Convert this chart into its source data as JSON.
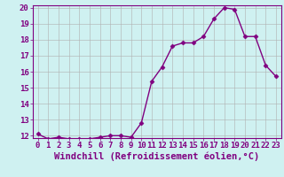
{
  "x": [
    0,
    1,
    2,
    3,
    4,
    5,
    6,
    7,
    8,
    9,
    10,
    11,
    12,
    13,
    14,
    15,
    16,
    17,
    18,
    19,
    20,
    21,
    22,
    23
  ],
  "y": [
    12.1,
    11.8,
    11.9,
    11.8,
    11.8,
    11.8,
    11.9,
    12.0,
    12.0,
    11.9,
    12.8,
    15.4,
    16.3,
    17.6,
    17.8,
    17.8,
    18.2,
    19.3,
    20.0,
    19.9,
    18.2,
    18.2,
    16.4,
    15.7
  ],
  "line_color": "#800080",
  "marker": "D",
  "markersize": 2.5,
  "linewidth": 1.0,
  "bg_color": "#cff1f1",
  "grid_color": "#b0b0b0",
  "xlabel": "Windchill (Refroidissement éolien,°C)",
  "ylim": [
    12,
    20
  ],
  "xlim": [
    -0.5,
    23.5
  ],
  "yticks": [
    12,
    13,
    14,
    15,
    16,
    17,
    18,
    19,
    20
  ],
  "xticks": [
    0,
    1,
    2,
    3,
    4,
    5,
    6,
    7,
    8,
    9,
    10,
    11,
    12,
    13,
    14,
    15,
    16,
    17,
    18,
    19,
    20,
    21,
    22,
    23
  ],
  "xlabel_fontsize": 7.5,
  "tick_fontsize": 6.5
}
